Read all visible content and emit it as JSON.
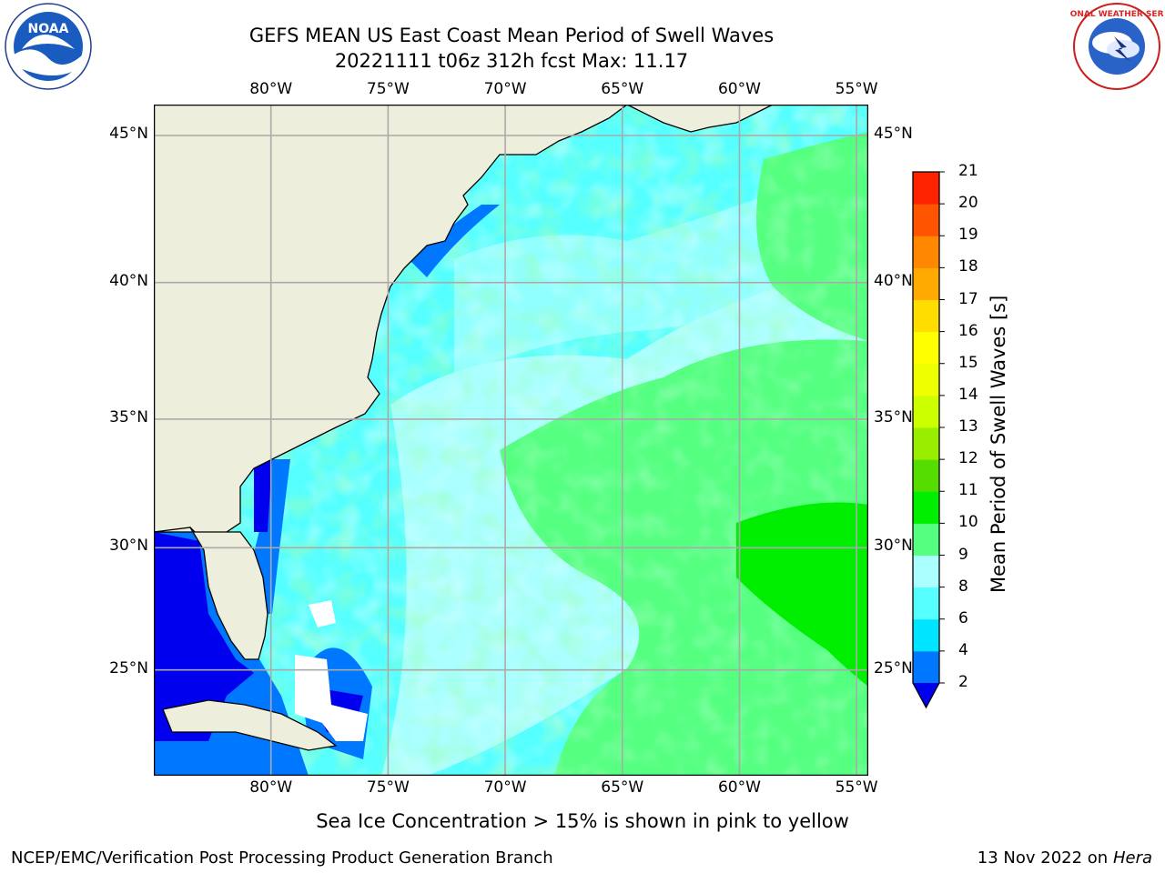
{
  "title": {
    "line1": "GEFS MEAN US East Coast Mean Period of Swell Waves",
    "line2": "20221111 t06z 312h fcst   Max: 11.17"
  },
  "map": {
    "lon_ticks": [
      "80°W",
      "75°W",
      "70°W",
      "65°W",
      "60°W",
      "55°W"
    ],
    "lat_ticks": [
      "45°N",
      "40°N",
      "35°N",
      "30°N",
      "25°N"
    ],
    "lon_values": [
      -80,
      -75,
      -70,
      -65,
      -60,
      -55
    ],
    "lat_values": [
      45,
      40,
      35,
      30,
      25
    ],
    "extent": {
      "lon_min": -85,
      "lon_max": -54.5,
      "lat_min": 20.5,
      "lat_max": 46
    },
    "land_color": "#eeeedd",
    "grid_color": "#aaaaaa"
  },
  "colorbar": {
    "label": "Mean Period of Swell Waves [s]",
    "levels": [
      "2",
      "4",
      "6",
      "8",
      "9",
      "10",
      "11",
      "12",
      "13",
      "14",
      "15",
      "16",
      "17",
      "18",
      "19",
      "20",
      "21"
    ],
    "colors": [
      "#0000ee",
      "#0077ff",
      "#00e5ff",
      "#55ffff",
      "#aaffff",
      "#55ff80",
      "#00ee00",
      "#55dd00",
      "#99ee00",
      "#ccff00",
      "#eeff00",
      "#ffff00",
      "#ffdd00",
      "#ffaa00",
      "#ff8800",
      "#ff5500",
      "#ff2200",
      "#ff0000"
    ]
  },
  "caption": "Sea Ice Concentration > 15% is shown in pink to yellow",
  "footer": {
    "left": "NCEP/EMC/Verification Post Processing Product Generation Branch",
    "date": "13 Nov 2022 on",
    "machine": "Hera"
  },
  "logos": {
    "left": {
      "text": "NOAA",
      "icon": "noaa-logo"
    },
    "right": {
      "text": "NATIONAL WEATHER SERVICE",
      "icon": "nws-logo"
    }
  }
}
